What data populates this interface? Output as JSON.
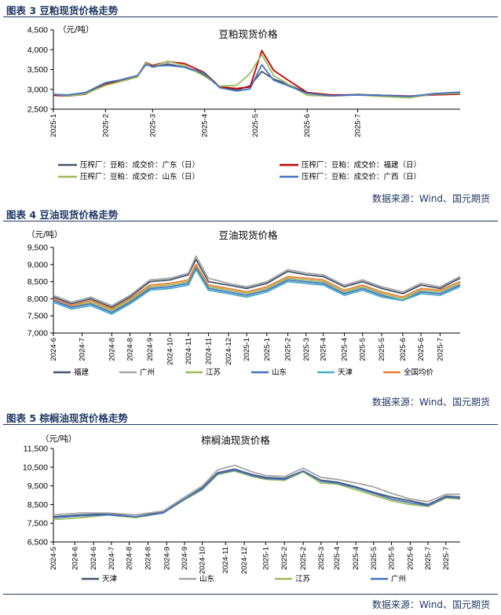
{
  "figures": [
    {
      "fig_title": "图表 3 豆粕现货价格走势",
      "source": "数据来源：Wind、国元期货"
    },
    {
      "fig_title": "图表 4 豆油现货价格走势",
      "source": "数据来源：Wind、国元期货"
    },
    {
      "fig_title": "图表 5 棕榈油现货价格走势",
      "source": "数据来源：Wind、国元期货"
    }
  ],
  "chart_data": [
    {
      "type": "line",
      "title": "豆粕现货价格",
      "unit": "（元/吨）",
      "ylim": [
        2500,
        4500
      ],
      "yticks": [
        "2,500",
        "3,000",
        "3,500",
        "4,000",
        "4,500"
      ],
      "ytick_values": [
        2500,
        3000,
        3500,
        4000,
        4500
      ],
      "xlim": [
        "2025-01-01",
        "2025-08-31"
      ],
      "x_tick_labels": [
        "2025-1",
        "2025-2",
        "2025-3",
        "2025-4",
        "2025-5",
        "2025-6",
        "2025-7"
      ],
      "x_tick_values": [
        "2025-01-01",
        "2025-02-01",
        "2025-03-01",
        "2025-04-01",
        "2025-05-01",
        "2025-06-01",
        "2025-07-01"
      ],
      "legend_position": "bottom",
      "legend_columns": 2,
      "x": [
        "2025-01-01",
        "2025-01-10",
        "2025-01-20",
        "2025-02-01",
        "2025-02-10",
        "2025-02-20",
        "2025-02-25",
        "2025-03-01",
        "2025-03-10",
        "2025-03-20",
        "2025-04-01",
        "2025-04-10",
        "2025-04-20",
        "2025-04-28",
        "2025-05-05",
        "2025-05-12",
        "2025-05-20",
        "2025-06-01",
        "2025-06-15",
        "2025-07-01",
        "2025-07-15",
        "2025-08-01",
        "2025-08-15",
        "2025-08-31"
      ],
      "series": [
        {
          "name": "压榨厂：豆粕：成交价：广东（日）",
          "color": "#44546a",
          "values": [
            2870,
            2840,
            2900,
            3160,
            3230,
            3330,
            3640,
            3560,
            3640,
            3560,
            3370,
            3050,
            2980,
            3090,
            3450,
            3260,
            3140,
            2910,
            2840,
            2870,
            2850,
            2800,
            2890,
            2920
          ]
        },
        {
          "name": "压榨厂：豆粕：成交价：福建（日）",
          "color": "#c00000",
          "values": [
            2850,
            2830,
            2880,
            3120,
            3220,
            3320,
            3680,
            3600,
            3700,
            3650,
            3420,
            3060,
            3020,
            3060,
            3980,
            3480,
            3250,
            2920,
            2860,
            2860,
            2850,
            2830,
            2860,
            2880
          ]
        },
        {
          "name": "压榨厂：豆粕：成交价：山东（日）",
          "color": "#9bbb59",
          "values": [
            2880,
            2830,
            2890,
            3100,
            3200,
            3310,
            3670,
            3570,
            3710,
            3600,
            3330,
            3080,
            3100,
            3400,
            3880,
            3350,
            3150,
            2850,
            2830,
            2860,
            2820,
            2790,
            2880,
            2900
          ]
        },
        {
          "name": "压榨厂：豆粕：成交价：广西（日）",
          "color": "#4472c4",
          "values": [
            2870,
            2860,
            2920,
            3170,
            3240,
            3350,
            3620,
            3580,
            3600,
            3560,
            3410,
            3040,
            2960,
            3010,
            3620,
            3230,
            3100,
            2900,
            2840,
            2860,
            2850,
            2820,
            2890,
            2930
          ]
        }
      ]
    },
    {
      "type": "line",
      "title": "豆油现货价格",
      "unit": "（元/吨）",
      "ylim": [
        7000,
        9500
      ],
      "yticks": [
        "7,000",
        "7,500",
        "8,000",
        "8,500",
        "9,000",
        "9,500"
      ],
      "ytick_values": [
        7000,
        7500,
        8000,
        8500,
        9000,
        9500
      ],
      "xlim": [
        "2024-06-01",
        "2025-07-31"
      ],
      "x_tick_labels": [
        "2024-6",
        "2024-7",
        "2024-8",
        "2024-8",
        "2024-9",
        "2024-10",
        "2024-11",
        "2024-11",
        "2024-12",
        "2025-1",
        "2025-1",
        "2025-2",
        "2025-3",
        "2025-4",
        "2025-4",
        "2025-5",
        "2025-5",
        "2025-6",
        "2025-6",
        "2025-7"
      ],
      "x_tick_values": [
        "2024-06-01",
        "2024-07-01",
        "2024-08-01",
        "2024-08-20",
        "2024-09-10",
        "2024-10-01",
        "2024-10-20",
        "2024-11-10",
        "2024-12-01",
        "2024-12-20",
        "2025-01-10",
        "2025-02-01",
        "2025-02-20",
        "2025-03-10",
        "2025-04-01",
        "2025-04-20",
        "2025-05-10",
        "2025-06-01",
        "2025-06-20",
        "2025-07-10"
      ],
      "legend_position": "bottom",
      "legend_columns": 6,
      "x": [
        "2024-06-01",
        "2024-06-20",
        "2024-07-10",
        "2024-08-01",
        "2024-08-20",
        "2024-09-10",
        "2024-10-01",
        "2024-10-20",
        "2024-10-28",
        "2024-11-10",
        "2024-12-01",
        "2024-12-20",
        "2025-01-10",
        "2025-02-01",
        "2025-02-20",
        "2025-03-10",
        "2025-04-01",
        "2025-04-20",
        "2025-05-10",
        "2025-06-01",
        "2025-06-20",
        "2025-07-10",
        "2025-07-31"
      ],
      "series": [
        {
          "name": "福建",
          "color": "#44546a",
          "values": [
            8050,
            7850,
            8000,
            7750,
            8050,
            8500,
            8550,
            8700,
            9150,
            8500,
            8400,
            8300,
            8450,
            8800,
            8700,
            8650,
            8350,
            8500,
            8300,
            8150,
            8400,
            8300,
            8600
          ]
        },
        {
          "name": "广州",
          "color": "#a5a5a5",
          "values": [
            8100,
            7900,
            8050,
            7800,
            8100,
            8550,
            8600,
            8750,
            9250,
            8600,
            8450,
            8350,
            8500,
            8850,
            8750,
            8700,
            8400,
            8550,
            8350,
            8200,
            8450,
            8350,
            8650
          ]
        },
        {
          "name": "江苏",
          "color": "#9bbb59",
          "values": [
            7950,
            7750,
            7900,
            7650,
            7950,
            8350,
            8400,
            8500,
            8950,
            8350,
            8250,
            8150,
            8300,
            8600,
            8550,
            8500,
            8200,
            8350,
            8150,
            8000,
            8250,
            8200,
            8450
          ]
        },
        {
          "name": "山东",
          "color": "#4472c4",
          "values": [
            7950,
            7750,
            7850,
            7600,
            7900,
            8300,
            8350,
            8450,
            8900,
            8300,
            8200,
            8100,
            8250,
            8550,
            8500,
            8450,
            8150,
            8300,
            8100,
            7950,
            8200,
            8150,
            8400
          ]
        },
        {
          "name": "天津",
          "color": "#4bacc6",
          "values": [
            7900,
            7700,
            7800,
            7550,
            7850,
            8250,
            8300,
            8400,
            8850,
            8250,
            8150,
            8050,
            8200,
            8500,
            8450,
            8400,
            8100,
            8250,
            8050,
            7950,
            8150,
            8100,
            8350
          ]
        },
        {
          "name": "全国均价",
          "color": "#ed7d31",
          "values": [
            8000,
            7800,
            7950,
            7700,
            8000,
            8400,
            8450,
            8550,
            9000,
            8400,
            8300,
            8200,
            8350,
            8650,
            8600,
            8550,
            8250,
            8400,
            8200,
            8050,
            8300,
            8250,
            8500
          ]
        }
      ]
    },
    {
      "type": "line",
      "title": "棕榈油现货价格",
      "unit": "（元/吨）",
      "ylim": [
        6500,
        11500
      ],
      "yticks": [
        "6,500",
        "7,500",
        "8,500",
        "9,500",
        "10,500",
        "11,500"
      ],
      "ytick_values": [
        6500,
        7500,
        8500,
        9500,
        10500,
        11500
      ],
      "xlim": [
        "2024-05-01",
        "2025-07-31"
      ],
      "x_tick_labels": [
        "2024-5",
        "2024-6",
        "2024-6",
        "2024-7",
        "2024-8",
        "2024-8",
        "2024-9",
        "2024-9",
        "2024-10",
        "2024-11",
        "2024-12",
        "2025-1",
        "2025-2",
        "2025-2",
        "2025-3",
        "2025-4",
        "2025-4",
        "2025-5",
        "2025-5",
        "2025-6",
        "2025-7",
        "2025-7"
      ],
      "x_tick_values": [
        "2024-05-01",
        "2024-05-25",
        "2024-06-15",
        "2024-07-05",
        "2024-07-25",
        "2024-08-15",
        "2024-09-05",
        "2024-09-25",
        "2024-10-15",
        "2024-11-10",
        "2024-12-01",
        "2024-12-25",
        "2025-01-15",
        "2025-02-05",
        "2025-02-25",
        "2025-03-15",
        "2025-04-05",
        "2025-04-25",
        "2025-05-15",
        "2025-06-05",
        "2025-06-25",
        "2025-07-15"
      ],
      "legend_position": "bottom",
      "legend_columns": 4,
      "x": [
        "2024-05-01",
        "2024-06-01",
        "2024-07-01",
        "2024-08-01",
        "2024-09-01",
        "2024-09-25",
        "2024-10-15",
        "2024-11-01",
        "2024-11-20",
        "2024-12-10",
        "2024-12-25",
        "2025-01-15",
        "2025-02-05",
        "2025-02-25",
        "2025-03-15",
        "2025-04-05",
        "2025-04-25",
        "2025-05-15",
        "2025-06-05",
        "2025-06-25",
        "2025-07-15",
        "2025-07-31"
      ],
      "series": [
        {
          "name": "天津",
          "color": "#44546a",
          "values": [
            7850,
            7950,
            8000,
            7850,
            8100,
            8800,
            9400,
            10200,
            10400,
            10100,
            9950,
            9900,
            10300,
            9800,
            9700,
            9450,
            9150,
            8900,
            8700,
            8500,
            8950,
            8900
          ]
        },
        {
          "name": "山东",
          "color": "#a5a5a5",
          "values": [
            7950,
            8050,
            8050,
            7950,
            8150,
            8900,
            9500,
            10350,
            10600,
            10250,
            10050,
            10000,
            10450,
            9950,
            9850,
            9650,
            9450,
            9100,
            8800,
            8650,
            9050,
            9050
          ]
        },
        {
          "name": "江苏",
          "color": "#9bbb59",
          "values": [
            7700,
            7800,
            7950,
            7800,
            8050,
            8750,
            9300,
            10100,
            10300,
            10000,
            9850,
            9800,
            10250,
            9650,
            9600,
            9300,
            9000,
            8700,
            8500,
            8400,
            8850,
            8800
          ]
        },
        {
          "name": "广州",
          "color": "#4472c4",
          "values": [
            7800,
            7900,
            7950,
            7850,
            8050,
            8800,
            9350,
            10150,
            10350,
            10050,
            9900,
            9850,
            10300,
            9750,
            9650,
            9400,
            9100,
            8800,
            8600,
            8450,
            8900,
            8850
          ]
        }
      ]
    }
  ]
}
